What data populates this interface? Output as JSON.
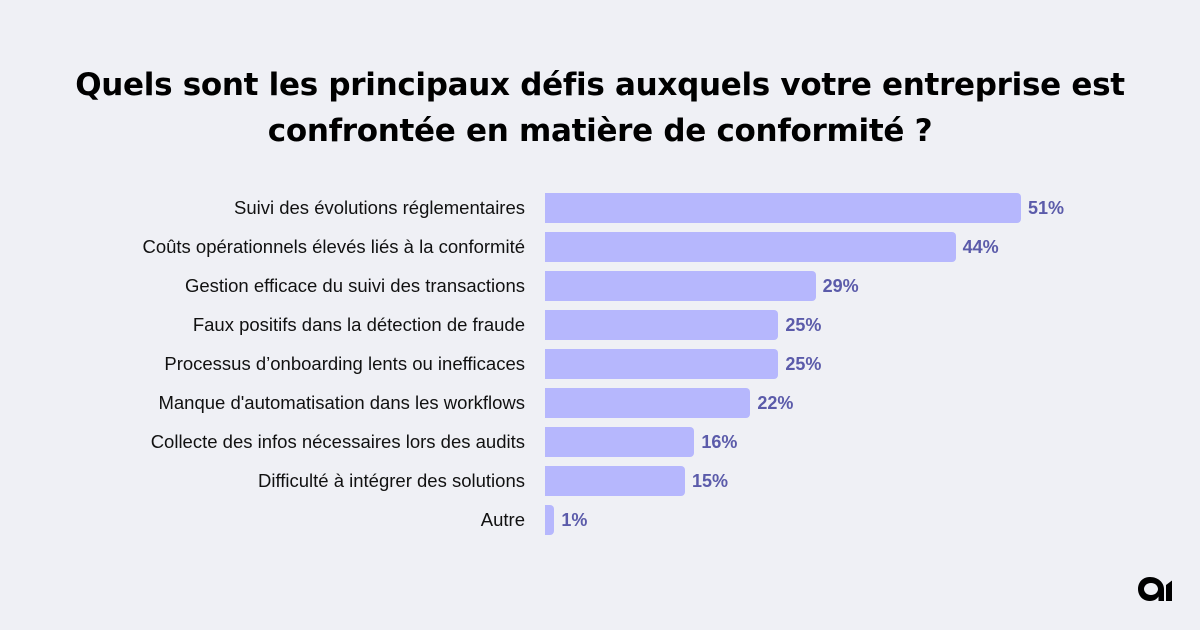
{
  "chart_data": {
    "type": "bar",
    "orientation": "horizontal",
    "title_lines": [
      "Quels sont les principaux défis auxquels votre entreprise est",
      "confrontée en matière de conformité ?"
    ],
    "categories": [
      "Suivi des évolutions réglementaires",
      "Coûts opérationnels élevés liés à la conformité",
      "Gestion efficace du suivi des transactions",
      "Faux positifs dans la détection de fraude",
      "Processus d’onboarding lents ou inefficaces",
      "Manque d'automatisation dans les workflows",
      "Collecte des infos nécessaires lors des audits",
      "Difficulté à intégrer des solutions",
      "Autre"
    ],
    "values": [
      51,
      44,
      29,
      25,
      25,
      22,
      16,
      15,
      1
    ],
    "value_labels": [
      "51%",
      "44%",
      "29%",
      "25%",
      "25%",
      "22%",
      "16%",
      "15%",
      "1%"
    ],
    "unit": "%",
    "xlabel": "",
    "ylabel": "",
    "grid": false,
    "legend": "none",
    "colors": {
      "bar": "#b6b7fd",
      "value_text": "#5b5baa",
      "background": "#eff0f5"
    }
  },
  "brand": {
    "logo_icon": "brand-logo-icon"
  }
}
